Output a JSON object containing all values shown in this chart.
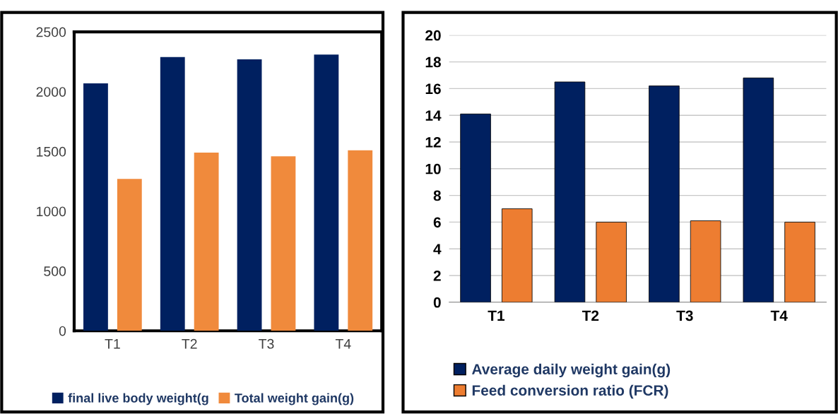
{
  "chart_data": [
    {
      "type": "bar",
      "categories": [
        "T1",
        "T2",
        "T3",
        "T4"
      ],
      "ylim": [
        0,
        2500
      ],
      "yticks": [
        0,
        500,
        1000,
        1500,
        2000,
        2500
      ],
      "grid": false,
      "legend": "bottom",
      "series": [
        {
          "name": "final live body weight(g",
          "color": "#002060",
          "values": [
            2070,
            2290,
            2270,
            2310
          ]
        },
        {
          "name": "Total weight gain(g)",
          "color": "#f08a3c",
          "values": [
            1270,
            1490,
            1460,
            1510
          ]
        }
      ]
    },
    {
      "type": "bar",
      "categories": [
        "T1",
        "T2",
        "T3",
        "T4"
      ],
      "ylim": [
        0,
        20
      ],
      "yticks": [
        0,
        2,
        4,
        6,
        8,
        10,
        12,
        14,
        16,
        18,
        20
      ],
      "grid": "y",
      "legend": "bottom",
      "series": [
        {
          "name": "Average daily weight gain(g)",
          "color": "#002060",
          "values": [
            14.1,
            16.5,
            16.2,
            16.8
          ]
        },
        {
          "name": "Feed conversion ratio (FCR)",
          "color": "#ed7d31",
          "values": [
            7.0,
            6.0,
            6.1,
            6.0
          ]
        }
      ]
    }
  ]
}
